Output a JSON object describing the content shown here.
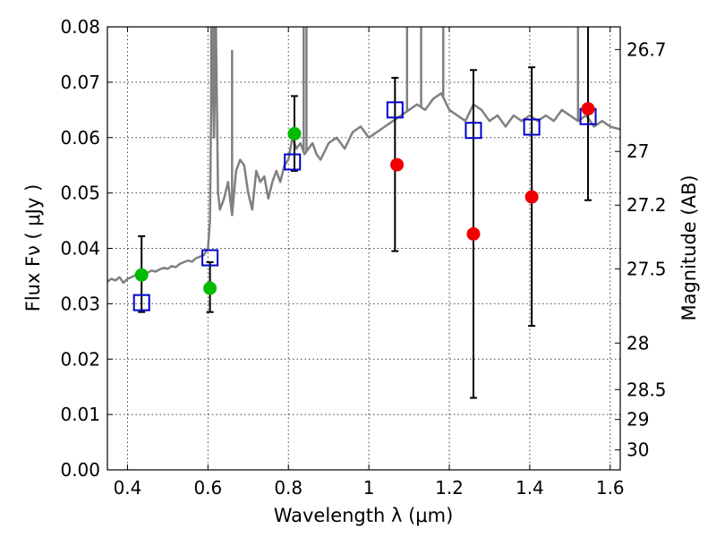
{
  "chart_data": {
    "type": "scatter",
    "title": "",
    "xlabel": "Wavelength  λ (μm)",
    "ylabel": "Flux  Fν  ( μJy )",
    "ylabel_right": "Magnitude (AB)",
    "xlim": [
      0.35,
      1.625
    ],
    "ylim": [
      0.0,
      0.08
    ],
    "grid": true,
    "x_ticks": [
      0.4,
      0.6,
      0.8,
      1.0,
      1.2,
      1.4,
      1.6
    ],
    "x_tick_labels": [
      "0.4",
      "0.6",
      "0.8",
      "1",
      "1.2",
      "1.4",
      "1.6"
    ],
    "y_ticks": [
      0.0,
      0.01,
      0.02,
      0.03,
      0.04,
      0.05,
      0.06,
      0.07,
      0.08
    ],
    "y_tick_labels": [
      "0.00",
      "0.01",
      "0.02",
      "0.03",
      "0.04",
      "0.05",
      "0.06",
      "0.07",
      "0.08"
    ],
    "right_ticks": [
      {
        "label": "26.7",
        "flux": 0.0759
      },
      {
        "label": "27",
        "flux": 0.0575
      },
      {
        "label": "27.2",
        "flux": 0.0478
      },
      {
        "label": "27.5",
        "flux": 0.0363
      },
      {
        "label": "28",
        "flux": 0.0229
      },
      {
        "label": "28.5",
        "flux": 0.0145
      },
      {
        "label": "29",
        "flux": 0.0091
      },
      {
        "label": "30",
        "flux": 0.0036
      }
    ],
    "colors": {
      "spectrum": "#808080",
      "model_points": "#0000cc",
      "green_points": "#00bb00",
      "red_points": "#ee0000",
      "error_bars": "#000000"
    },
    "spectrum": {
      "x": [
        0.35,
        0.36,
        0.37,
        0.38,
        0.39,
        0.4,
        0.41,
        0.42,
        0.43,
        0.44,
        0.45,
        0.46,
        0.47,
        0.48,
        0.49,
        0.5,
        0.51,
        0.52,
        0.53,
        0.54,
        0.55,
        0.56,
        0.57,
        0.58,
        0.59,
        0.6,
        0.605,
        0.61,
        0.615,
        0.62,
        0.625,
        0.63,
        0.64,
        0.65,
        0.66,
        0.67,
        0.68,
        0.69,
        0.7,
        0.71,
        0.72,
        0.73,
        0.74,
        0.75,
        0.76,
        0.77,
        0.78,
        0.79,
        0.8,
        0.81,
        0.82,
        0.83,
        0.84,
        0.85,
        0.86,
        0.87,
        0.88,
        0.9,
        0.92,
        0.94,
        0.96,
        0.98,
        1.0,
        1.02,
        1.04,
        1.06,
        1.08,
        1.1,
        1.12,
        1.14,
        1.16,
        1.18,
        1.2,
        1.22,
        1.24,
        1.26,
        1.28,
        1.3,
        1.32,
        1.34,
        1.36,
        1.38,
        1.4,
        1.42,
        1.44,
        1.46,
        1.48,
        1.5,
        1.52,
        1.54,
        1.56,
        1.58,
        1.6,
        1.625
      ],
      "y": [
        0.034,
        0.0345,
        0.0342,
        0.0348,
        0.0338,
        0.0345,
        0.0348,
        0.0352,
        0.0355,
        0.0358,
        0.0356,
        0.036,
        0.0358,
        0.0362,
        0.0365,
        0.0363,
        0.0368,
        0.0366,
        0.0372,
        0.0375,
        0.0378,
        0.0376,
        0.0382,
        0.0385,
        0.0388,
        0.04,
        0.045,
        0.08,
        0.06,
        0.08,
        0.05,
        0.047,
        0.049,
        0.052,
        0.046,
        0.054,
        0.056,
        0.055,
        0.05,
        0.047,
        0.054,
        0.052,
        0.053,
        0.049,
        0.052,
        0.054,
        0.052,
        0.055,
        0.056,
        0.06,
        0.058,
        0.059,
        0.057,
        0.058,
        0.059,
        0.057,
        0.056,
        0.059,
        0.06,
        0.058,
        0.061,
        0.062,
        0.06,
        0.061,
        0.062,
        0.063,
        0.064,
        0.065,
        0.066,
        0.065,
        0.067,
        0.068,
        0.065,
        0.064,
        0.063,
        0.066,
        0.065,
        0.063,
        0.064,
        0.062,
        0.064,
        0.063,
        0.064,
        0.063,
        0.064,
        0.063,
        0.065,
        0.064,
        0.063,
        0.064,
        0.062,
        0.063,
        0.062,
        0.0615
      ]
    },
    "spikes": [
      {
        "x": 0.608,
        "y": 0.08
      },
      {
        "x": 0.615,
        "y": 0.08
      },
      {
        "x": 0.66,
        "y": 0.075
      },
      {
        "x": 0.838,
        "y": 0.08
      },
      {
        "x": 0.845,
        "y": 0.08
      },
      {
        "x": 1.095,
        "y": 0.08
      },
      {
        "x": 1.13,
        "y": 0.08
      },
      {
        "x": 1.185,
        "y": 0.08
      },
      {
        "x": 1.52,
        "y": 0.08
      }
    ],
    "model_points": {
      "x": [
        0.435,
        0.605,
        0.81,
        1.065,
        1.26,
        1.405,
        1.545
      ],
      "y": [
        0.0302,
        0.0383,
        0.0556,
        0.065,
        0.0613,
        0.0619,
        0.0638
      ]
    },
    "green_points": {
      "x": [
        0.435,
        0.605,
        0.815
      ],
      "y": [
        0.0352,
        0.0328,
        0.0607
      ]
    },
    "red_points": {
      "x": [
        1.07,
        1.26,
        1.405,
        1.545
      ],
      "y": [
        0.0551,
        0.0426,
        0.0493,
        0.0652
      ]
    },
    "error_bars": [
      {
        "x": 0.435,
        "low": 0.0285,
        "high": 0.0422
      },
      {
        "x": 0.605,
        "low": 0.0285,
        "high": 0.0375
      },
      {
        "x": 0.815,
        "low": 0.054,
        "high": 0.0675
      },
      {
        "x": 1.065,
        "low": 0.0395,
        "high": 0.0708
      },
      {
        "x": 1.26,
        "low": 0.013,
        "high": 0.0722
      },
      {
        "x": 1.405,
        "low": 0.026,
        "high": 0.0727
      },
      {
        "x": 1.545,
        "low": 0.0487,
        "high": 0.082
      }
    ]
  }
}
